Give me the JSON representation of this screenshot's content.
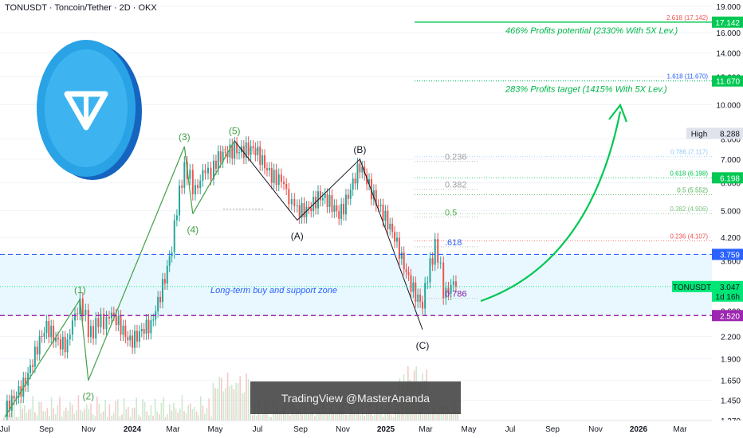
{
  "header": {
    "title": "TONUSDT · Toncoin/Tether · 2D · OKX"
  },
  "watermark": "TradingView @MasterAnanda",
  "colors": {
    "up": "#26a69a",
    "down": "#ef5350",
    "wave": "#43a047",
    "accent_green": "#00c853",
    "support": "#2962ff",
    "purple": "#9c27b0"
  },
  "chart_data": {
    "type": "candlestick",
    "y_scale": "log",
    "ylim": [
      1.27,
      19.0
    ],
    "x_ticks": [
      "Jul",
      "Sep",
      "Nov",
      "2024",
      "Mar",
      "May",
      "Jul",
      "Sep",
      "Nov",
      "2025",
      "Mar",
      "May",
      "Jul",
      "Sep",
      "Nov",
      "2026",
      "Mar"
    ],
    "y_ticks": [
      "19.000",
      "16.000",
      "14.000",
      "12.000",
      "10.000",
      "8.000",
      "7.000",
      "6.000",
      "5.000",
      "4.200",
      "3.600",
      "3.000",
      "2.600",
      "2.200",
      "1.900",
      "1.650",
      "1.450",
      "1.270"
    ],
    "price_path": [
      [
        "Jul",
        1.3
      ],
      [
        "Aug",
        1.7
      ],
      [
        "Sep",
        2.3
      ],
      [
        "Oct",
        2.1
      ],
      [
        "Oct 20",
        2.8
      ],
      [
        "Nov",
        2.3
      ],
      [
        "Nov 20",
        2.4
      ],
      [
        "Dec",
        2.5
      ],
      [
        "2024",
        2.2
      ],
      [
        "Feb",
        2.3
      ],
      [
        "Mar",
        4.0
      ],
      [
        "Mar 20",
        6.8
      ],
      [
        "Apr",
        5.8
      ],
      [
        "Apr 20",
        6.4
      ],
      [
        "May",
        6.6
      ],
      [
        "Jun",
        7.7
      ],
      [
        "Jul",
        7.2
      ],
      [
        "Aug",
        6.3
      ],
      [
        "Aug 20",
        5.5
      ],
      [
        "Sep",
        5.0
      ],
      [
        "Oct",
        5.4
      ],
      [
        "Nov",
        5.0
      ],
      [
        "Dec",
        6.5
      ],
      [
        "2025",
        5.2
      ],
      [
        "Feb",
        3.6
      ],
      [
        "Mar",
        2.7
      ],
      [
        "Mar 20",
        4.1
      ],
      [
        "Apr",
        3.0
      ],
      [
        "Apr 20",
        3.047
      ]
    ],
    "waves": [
      {
        "label": "(1)",
        "date": "Oct 20",
        "price": 2.8
      },
      {
        "label": "(2)",
        "date": "Nov",
        "price": 1.65
      },
      {
        "label": "(3)",
        "date": "Mar 20",
        "price": 7.6
      },
      {
        "label": "(4)",
        "date": "Apr",
        "price": 4.9
      },
      {
        "label": "(5)",
        "date": "Jun",
        "price": 7.9
      },
      {
        "label": "(A)",
        "date": "Sep",
        "price": 4.7
      },
      {
        "label": "(B)",
        "date": "Dec",
        "price": 7.0
      },
      {
        "label": "(C)",
        "date": "Mar",
        "price": 2.3
      }
    ],
    "fib_levels": [
      {
        "label": "2.618 (17.142)",
        "price": 17.142,
        "color": "#ef5350"
      },
      {
        "label": "1.618 (11.670)",
        "price": 11.67,
        "color": "#2962ff"
      },
      {
        "label": "0.786 (7.117)",
        "price": 7.117,
        "color": "#90caf9"
      },
      {
        "label": "0.618 (6.198)",
        "price": 6.198,
        "color": "#00c853"
      },
      {
        "label": "0.5 (5.552)",
        "price": 5.552,
        "color": "#4caf50"
      },
      {
        "label": "0.382 (4.906)",
        "price": 4.906,
        "color": "#81c784"
      },
      {
        "label": "0.236 (4.107)",
        "price": 4.107,
        "color": "#ef5350"
      }
    ],
    "retracements": [
      {
        "label": "0.236",
        "price": 6.9
      },
      {
        "label": "0.382",
        "price": 5.75
      },
      {
        "label": "0.5",
        "price": 4.8
      },
      {
        "label": ".618",
        "price": 3.95
      },
      {
        "label": "0.786",
        "price": 2.82
      }
    ],
    "annotations": {
      "profit_potential": "466% Profits potential (2330% With 5X Lev.)",
      "profit_target": "283% Profits target (1415% With 5X Lev.)",
      "support_zone": "Long-term buy and support zone"
    },
    "price_tags": [
      {
        "text": "17.142",
        "price": 17.142,
        "bg": "#00c853",
        "fg": "#ffffff"
      },
      {
        "text": "11.670",
        "price": 11.67,
        "bg": "#00c853",
        "fg": "#ffffff"
      },
      {
        "text": "8.288",
        "price": 8.288,
        "bg": "#e0e3eb",
        "fg": "#131722",
        "prefix": "High"
      },
      {
        "text": "6.198",
        "price": 6.198,
        "bg": "#00c853",
        "fg": "#ffffff"
      },
      {
        "text": "3.759",
        "price": 3.759,
        "bg": "#2962ff",
        "fg": "#ffffff"
      },
      {
        "text": "3.047",
        "price": 3.047,
        "bg": "#00e676",
        "fg": "#131722",
        "prefix": "TONUSDT",
        "sub": "1d 16h"
      },
      {
        "text": "2.520",
        "price": 2.52,
        "bg": "#9c27b0",
        "fg": "#ffffff"
      }
    ],
    "support_line": 3.759,
    "purple_line": 2.52,
    "current_price": 3.047
  }
}
